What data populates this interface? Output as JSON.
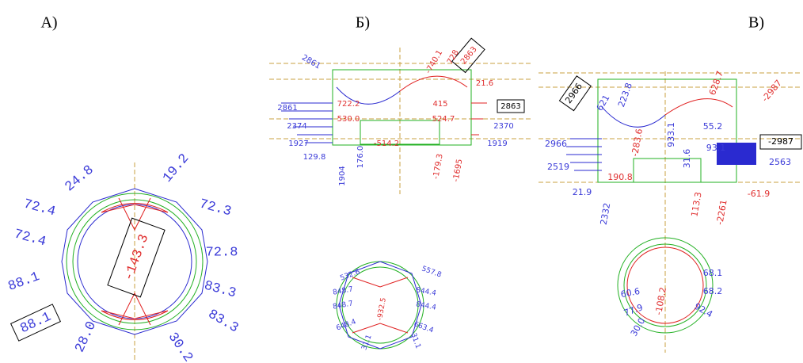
{
  "panels": [
    {
      "label": "A)",
      "ring": [
        "24.8",
        "72.4",
        "72.4",
        "88.1",
        "88.1",
        "28.0",
        "19.2",
        "72.3",
        "72.8",
        "83.3",
        "83.3",
        "30.2",
        "-143.3"
      ]
    },
    {
      "label": "Б)",
      "frame": [
        "2861",
        "2863",
        "728",
        "-740.1",
        "21.6",
        "2861",
        "722.2",
        "415",
        "2863",
        "2374",
        "530.0",
        "524.7",
        "2370",
        "1927",
        "-514.2",
        "1919",
        "129.8",
        "176.0",
        "-179.3",
        "1904",
        "-1695"
      ],
      "ring": [
        "532.6",
        "557.8",
        "848.7",
        "844.4",
        "848.7",
        "844.4",
        "648.4",
        "663.4",
        "31.1",
        "-932.5",
        "31.1"
      ]
    },
    {
      "label": "В)",
      "frame": [
        "2966",
        "621",
        "223.8",
        "628.7",
        "-2987",
        "55.2",
        "-283.6",
        "933.1",
        "31.6",
        "2966",
        "93.1",
        "-2987",
        "2519",
        "2563",
        "190.8",
        "113.3",
        "21.9",
        "-61.9",
        "2332",
        "-2261"
      ],
      "ring": [
        "68.1",
        "68.2",
        "60.6",
        "77.9",
        "30.0",
        "-108.2",
        "92.4"
      ]
    }
  ]
}
